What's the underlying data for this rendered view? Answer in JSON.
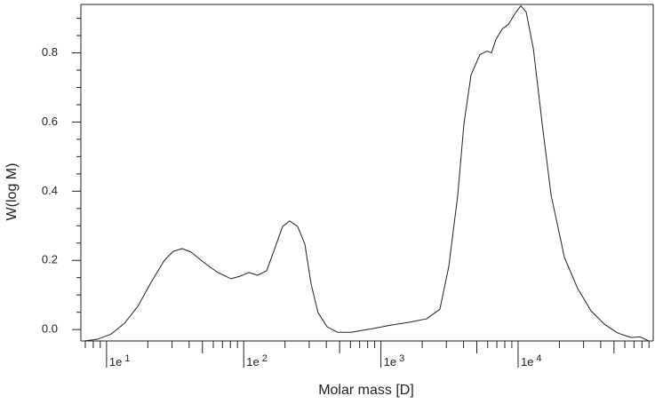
{
  "chart_data": {
    "type": "line",
    "x_label": "Molar mass [D]",
    "y_label": "W(log M)",
    "xscale": "log",
    "xlim": [
      6.5,
      96600
    ],
    "ylim": [
      -0.033,
      0.94
    ],
    "xticks": [
      {
        "value": 10,
        "label": "1e",
        "exponent": "1"
      },
      {
        "value": 100,
        "label": "1e",
        "exponent": "2"
      },
      {
        "value": 1000,
        "label": "1e",
        "exponent": "3"
      },
      {
        "value": 10000,
        "label": "1e",
        "exponent": "4"
      }
    ],
    "xminorticks": [
      7,
      8,
      9,
      20,
      30,
      40,
      50,
      60,
      70,
      80,
      90,
      200,
      300,
      400,
      500,
      600,
      700,
      800,
      900,
      2000,
      3000,
      4000,
      5000,
      6000,
      7000,
      8000,
      9000,
      20000,
      30000,
      40000,
      50000,
      60000,
      70000,
      80000,
      90000
    ],
    "yticks": [
      {
        "value": 0,
        "label": "0.0"
      },
      0.2,
      0.4,
      0.6,
      0.8
    ],
    "yminorticks": [
      0.05,
      0.1,
      0.15,
      0.25,
      0.3,
      0.35,
      0.45,
      0.5,
      0.55,
      0.65,
      0.7,
      0.75,
      0.85,
      0.9
    ],
    "series": [
      {
        "color": "#222222",
        "x": [
          6.89,
          8.61,
          10.8,
          13.5,
          16.9,
          21.1,
          26.4,
          30.6,
          35.6,
          41.3,
          51.6,
          64.6,
          80.7,
          93.8,
          109,
          126,
          147,
          170,
          192,
          216,
          247,
          279,
          310,
          348,
          405,
          484,
          605,
          879,
          1186,
          1600,
          2153,
          2692,
          3126,
          3631,
          4027,
          4539,
          5272,
          5943,
          6397,
          6901,
          7656,
          8492,
          9573,
          10470,
          11450,
          12910,
          14990,
          17410,
          21780,
          27230,
          34040,
          42660,
          53330,
          66680,
          77270,
          89760
        ],
        "values": [
          -0.033,
          -0.028,
          -0.013,
          0.018,
          0.067,
          0.136,
          0.2,
          0.226,
          0.234,
          0.224,
          0.193,
          0.165,
          0.147,
          0.154,
          0.165,
          0.157,
          0.17,
          0.239,
          0.298,
          0.314,
          0.298,
          0.247,
          0.131,
          0.049,
          0.008,
          -0.008,
          -0.008,
          0.003,
          0.013,
          0.021,
          0.031,
          0.059,
          0.183,
          0.388,
          0.594,
          0.736,
          0.795,
          0.805,
          0.8,
          0.839,
          0.869,
          0.882,
          0.916,
          0.936,
          0.918,
          0.813,
          0.594,
          0.388,
          0.208,
          0.118,
          0.054,
          0.015,
          -0.01,
          -0.023,
          -0.021,
          -0.033
        ]
      }
    ]
  }
}
